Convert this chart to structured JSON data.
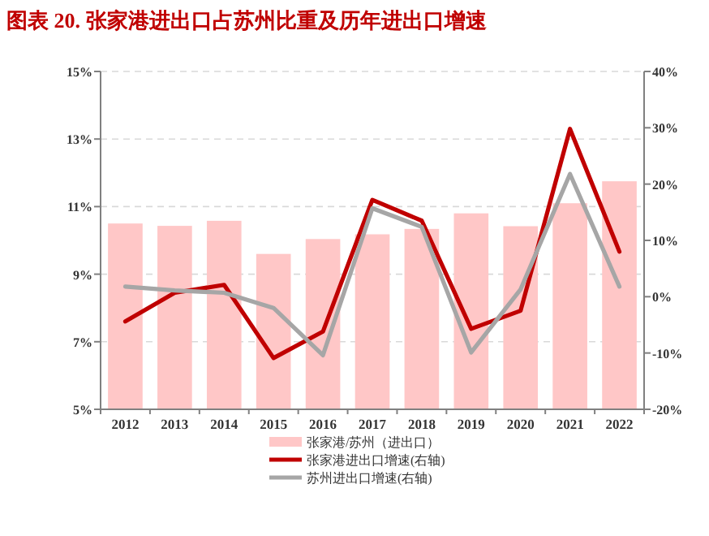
{
  "chart_data": {
    "type": "bar",
    "title": "图表 20. 张家港进出口占苏州比重及历年进出口增速",
    "categories": [
      "2012",
      "2013",
      "2014",
      "2015",
      "2016",
      "2017",
      "2018",
      "2019",
      "2020",
      "2021",
      "2022"
    ],
    "series": [
      {
        "name": "张家港/苏州（进出口）",
        "color": "#ffc7c7",
        "values": [
          10.5,
          10.43,
          10.58,
          9.6,
          10.04,
          10.18,
          10.34,
          10.8,
          10.42,
          11.1,
          11.75
        ]
      },
      {
        "name": "张家港进出口增速(右轴)",
        "type": "line",
        "axis": "y2",
        "color": "#c00000",
        "values": [
          -4.4,
          0.7,
          2.1,
          -10.9,
          -6.2,
          17.2,
          13.5,
          -5.7,
          -2.5,
          29.8,
          8.0
        ]
      },
      {
        "name": "苏州进出口增速(右轴)",
        "type": "line",
        "axis": "y2",
        "color": "#a6a6a6",
        "values": [
          1.8,
          1.1,
          0.7,
          -2.0,
          -10.4,
          15.7,
          12.4,
          -9.9,
          1.3,
          21.8,
          1.8
        ]
      }
    ],
    "ylim": [
      5,
      15
    ],
    "yticks": [
      {
        "value": 5,
        "label": "5%"
      },
      {
        "value": 7,
        "label": "7%"
      },
      {
        "value": 9,
        "label": "9%"
      },
      {
        "value": 11,
        "label": "11%"
      },
      {
        "value": 13,
        "label": "13%"
      },
      {
        "value": 15,
        "label": "15%"
      }
    ],
    "y2lim": [
      -20,
      40
    ],
    "y2ticks": [
      {
        "value": -20,
        "label": "-20%"
      },
      {
        "value": -10,
        "label": "-10%"
      },
      {
        "value": 0,
        "label": "0%"
      },
      {
        "value": 10,
        "label": "10%"
      },
      {
        "value": 20,
        "label": "20%"
      },
      {
        "value": 30,
        "label": "30%"
      },
      {
        "value": 40,
        "label": "40%"
      }
    ],
    "grid": "y",
    "legend": "bottom",
    "line_style": "solid",
    "marker": "none"
  }
}
